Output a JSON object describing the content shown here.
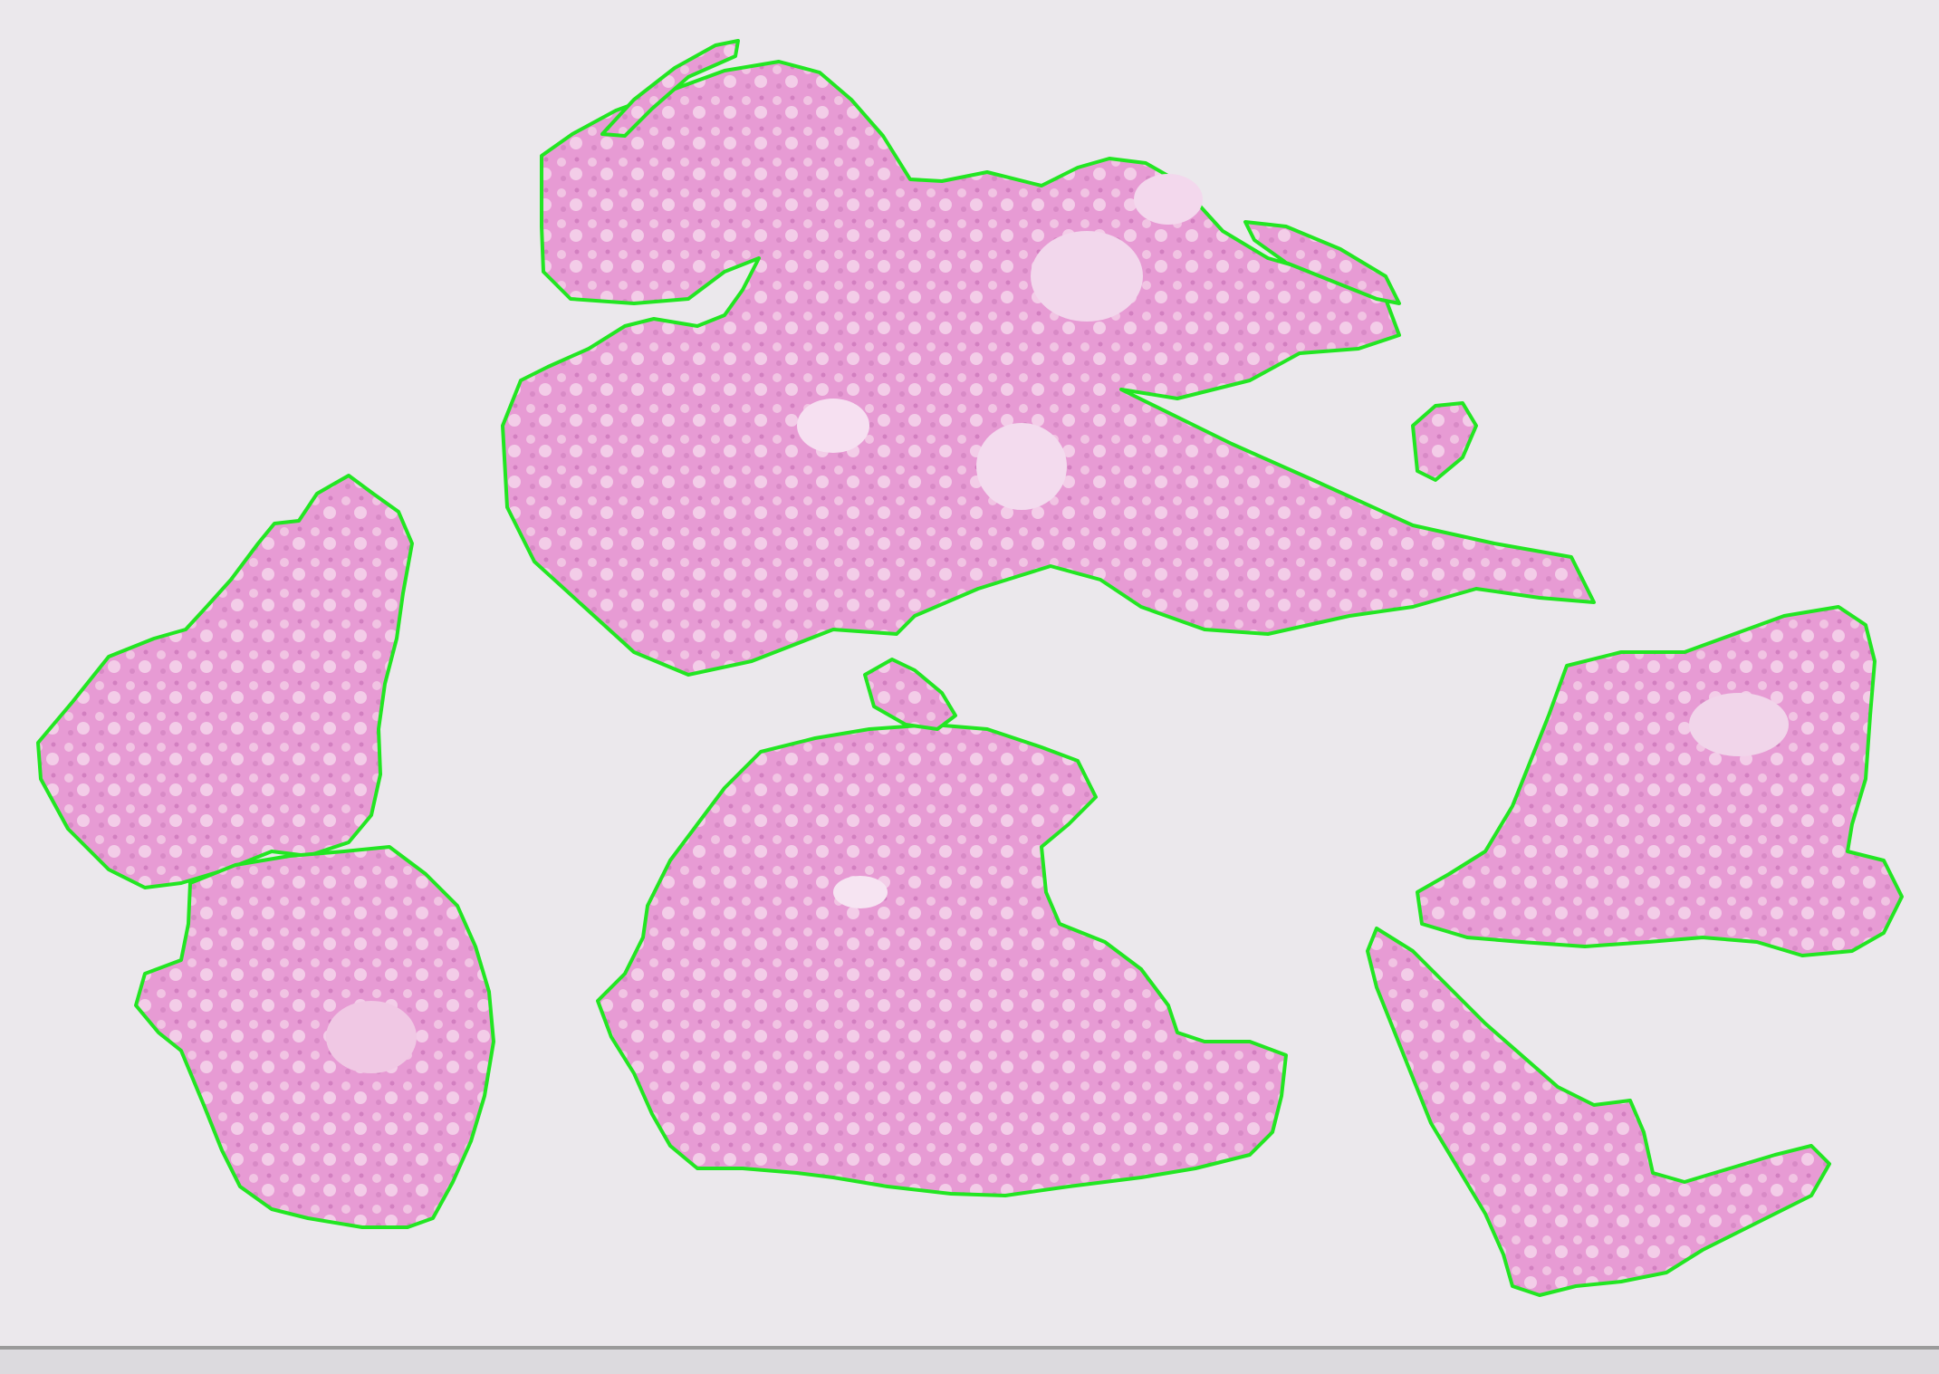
{
  "image": {
    "kind": "whole-slide histology thumbnail with tissue segmentation outlines",
    "colors": {
      "background": "#ebe8ec",
      "tissue_fill": "#e79bd4",
      "tissue_light": "#f1c4e3",
      "tissue_dark": "#d27fc0",
      "lumen": "#f4dcef",
      "outline": "#22e622",
      "slide_edge": "#9a9a9a"
    },
    "fragments": [
      {
        "name": "tissue-fragment-top-center"
      },
      {
        "name": "tissue-fragment-left-upper"
      },
      {
        "name": "tissue-fragment-left-lower"
      },
      {
        "name": "tissue-fragment-bottom-center"
      },
      {
        "name": "tissue-fragment-right-upper"
      },
      {
        "name": "tissue-fragment-right-lower"
      }
    ]
  }
}
